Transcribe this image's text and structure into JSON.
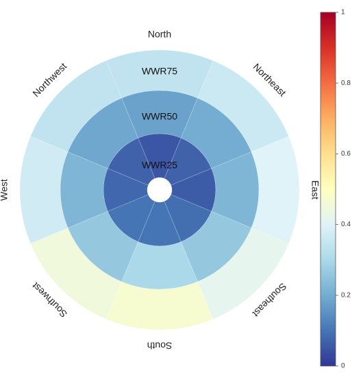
{
  "chart_data": {
    "type": "heatmap",
    "subtype": "polar-sector-heatmap",
    "directions": [
      "North",
      "Northeast",
      "East",
      "Southeast",
      "South",
      "Southwest",
      "West",
      "Northwest"
    ],
    "rings": [
      "WWR25",
      "WWR50",
      "WWR75"
    ],
    "values": {
      "WWR25": [
        0.05,
        0.07,
        0.06,
        0.09,
        0.1,
        0.1,
        0.08,
        0.07
      ],
      "WWR50": [
        0.18,
        0.2,
        0.22,
        0.26,
        0.3,
        0.26,
        0.22,
        0.19
      ],
      "WWR75": [
        0.34,
        0.36,
        0.4,
        0.42,
        0.47,
        0.45,
        0.37,
        0.34
      ]
    },
    "colorbar": {
      "colormap": "RdYlBu_r",
      "range": [
        0,
        1
      ],
      "ticks": [
        0,
        0.2,
        0.4,
        0.6,
        0.8,
        1
      ],
      "tick_labels": [
        "0",
        "0.2",
        "0.4",
        "0.6",
        "0.8",
        "1"
      ]
    },
    "title": "",
    "xlabel": "",
    "ylabel": ""
  }
}
